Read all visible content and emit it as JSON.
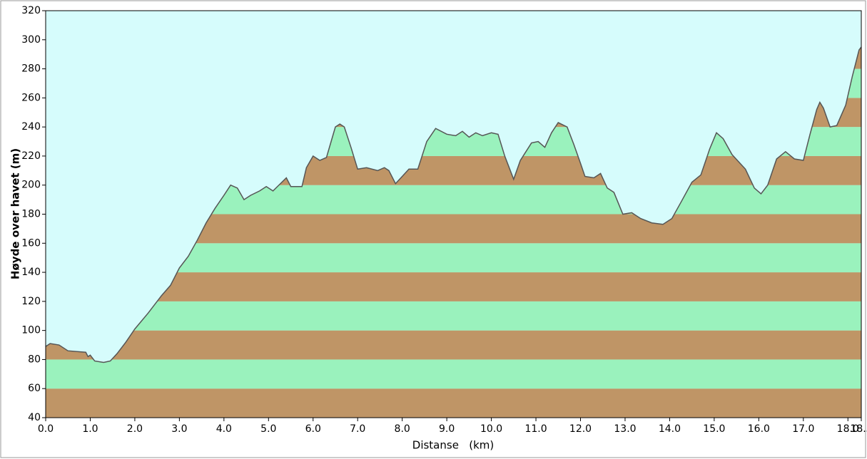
{
  "chart_data": {
    "type": "area",
    "x_label": "Distanse   (km)",
    "y_label": "Høyde over havet (m)",
    "x": [
      0,
      0.1,
      0.3,
      0.5,
      0.9,
      0.95,
      1.0,
      1.1,
      1.3,
      1.45,
      1.6,
      1.8,
      2.0,
      2.3,
      2.6,
      2.8,
      3.0,
      3.2,
      3.4,
      3.6,
      3.8,
      4.0,
      4.15,
      4.3,
      4.45,
      4.6,
      4.8,
      4.95,
      5.1,
      5.2,
      5.4,
      5.5,
      5.75,
      5.85,
      6.0,
      6.15,
      6.3,
      6.5,
      6.6,
      6.7,
      6.85,
      7.0,
      7.2,
      7.45,
      7.6,
      7.7,
      7.85,
      8.0,
      8.15,
      8.35,
      8.55,
      8.75,
      9.0,
      9.2,
      9.35,
      9.5,
      9.65,
      9.8,
      10.0,
      10.15,
      10.3,
      10.5,
      10.65,
      10.9,
      11.05,
      11.2,
      11.35,
      11.5,
      11.7,
      11.85,
      12.0,
      12.1,
      12.3,
      12.45,
      12.6,
      12.75,
      12.95,
      13.15,
      13.35,
      13.6,
      13.85,
      14.05,
      14.25,
      14.5,
      14.7,
      14.9,
      15.05,
      15.2,
      15.4,
      15.7,
      15.9,
      16.05,
      16.2,
      16.4,
      16.6,
      16.8,
      17.0,
      17.15,
      17.3,
      17.37,
      17.45,
      17.6,
      17.75,
      17.95,
      18.1,
      18.25,
      18.3
    ],
    "values": [
      89,
      91,
      90,
      86,
      85,
      82,
      83,
      79,
      78,
      79,
      84,
      92,
      101,
      112,
      124,
      131,
      143,
      151,
      162,
      174,
      184,
      193,
      200,
      198,
      190,
      193,
      196,
      199,
      196,
      199,
      205,
      199,
      199,
      212,
      220,
      217,
      219,
      240,
      242,
      240,
      226,
      211,
      212,
      210,
      212,
      210,
      201,
      206,
      211,
      211,
      230,
      239,
      235,
      234,
      237,
      233,
      236,
      234,
      236,
      235,
      220,
      204,
      217,
      229,
      230,
      226,
      236,
      243,
      240,
      228,
      215,
      206,
      205,
      208,
      198,
      195,
      180,
      181,
      177,
      174,
      173,
      177,
      188,
      202,
      207,
      225,
      236,
      232,
      221,
      211,
      198,
      194,
      200,
      218,
      223,
      218,
      217,
      235,
      252,
      257,
      253,
      240,
      241,
      255,
      275,
      293,
      295
    ],
    "xlim": [
      0,
      18.3
    ],
    "xticks": [
      {
        "value": 0,
        "label": "0.0"
      },
      {
        "value": 1,
        "label": "1.0"
      },
      {
        "value": 2,
        "label": "2.0"
      },
      {
        "value": 3,
        "label": "3.0"
      },
      {
        "value": 4,
        "label": "4.0"
      },
      {
        "value": 5,
        "label": "5.0"
      },
      {
        "value": 6,
        "label": "6.0"
      },
      {
        "value": 7,
        "label": "7.0"
      },
      {
        "value": 8,
        "label": "8.0"
      },
      {
        "value": 9,
        "label": "9.0"
      },
      {
        "value": 10,
        "label": "10.0"
      },
      {
        "value": 11,
        "label": "11.0"
      },
      {
        "value": 12,
        "label": "12.0"
      },
      {
        "value": 13,
        "label": "13.0"
      },
      {
        "value": 14,
        "label": "14.0"
      },
      {
        "value": 15,
        "label": "15.0"
      },
      {
        "value": 16,
        "label": "16.0"
      },
      {
        "value": 17,
        "label": "17.0"
      },
      {
        "value": 18,
        "label": "18.0"
      },
      18.3
    ],
    "ylim": [
      40,
      320
    ],
    "yticks": [
      40,
      60,
      80,
      100,
      120,
      140,
      160,
      180,
      200,
      220,
      240,
      260,
      280,
      300,
      320
    ],
    "band_colors": [
      "#bf9566",
      "#9af2bd"
    ],
    "background": "#d6fcfc",
    "line_color": "#555555"
  }
}
